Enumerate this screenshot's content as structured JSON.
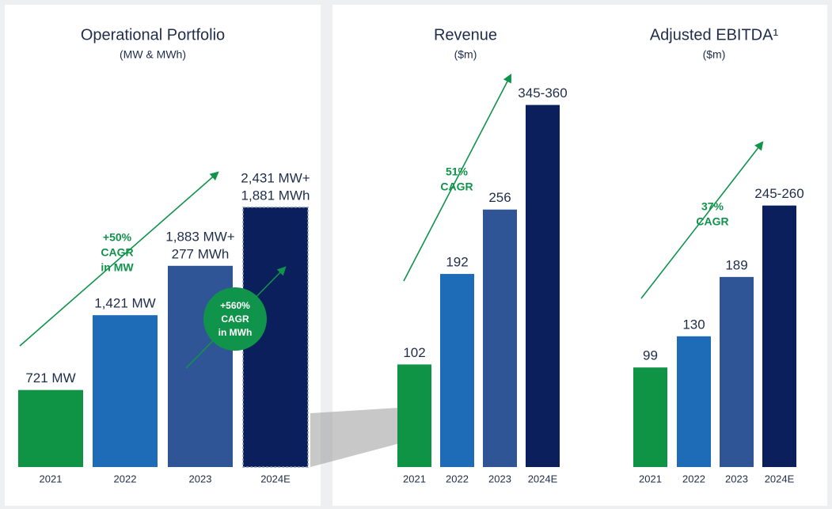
{
  "chart_data": [
    {
      "type": "bar",
      "title": "Operational Portfolio",
      "subtitle": "(MW & MWh)",
      "categories": [
        "2021",
        "2022",
        "2023",
        "2024E"
      ],
      "values": [
        721,
        1421,
        1883,
        2431
      ],
      "value_labels": [
        [
          "721 MW"
        ],
        [
          "1,421 MW"
        ],
        [
          "1,883 MW+",
          "277 MWh"
        ],
        [
          "2,431 MW+",
          "1,881 MWh"
        ]
      ],
      "colors": [
        "#0e9444",
        "#1e6bb8",
        "#2f5597",
        "#0b1f5c"
      ],
      "ylim": [
        0,
        4000
      ],
      "annotations": [
        {
          "lines": [
            "+50%",
            "CAGR",
            "in MW"
          ]
        },
        {
          "lines": [
            "+560%",
            "CAGR",
            "in MWh"
          ]
        }
      ]
    },
    {
      "type": "bar",
      "title": "Revenue",
      "subtitle": "($m)",
      "categories": [
        "2021",
        "2022",
        "2023",
        "2024E"
      ],
      "values": [
        102,
        192,
        256,
        360
      ],
      "value_labels": [
        [
          "102"
        ],
        [
          "192"
        ],
        [
          "256"
        ],
        [
          "345-360"
        ]
      ],
      "colors": [
        "#0e9444",
        "#1e6bb8",
        "#2f5597",
        "#0b1f5c"
      ],
      "ylim": [
        0,
        425
      ],
      "annotations": [
        {
          "lines": [
            "51%",
            "CAGR"
          ]
        }
      ]
    },
    {
      "type": "bar",
      "title": "Adjusted EBITDA¹",
      "subtitle": "($m)",
      "categories": [
        "2021",
        "2022",
        "2023",
        "2024E"
      ],
      "values": [
        99,
        130,
        189,
        260
      ],
      "value_labels": [
        [
          "99"
        ],
        [
          "130"
        ],
        [
          "189"
        ],
        [
          "245-260"
        ]
      ],
      "colors": [
        "#0e9444",
        "#1e6bb8",
        "#2f5597",
        "#0b1f5c"
      ],
      "ylim": [
        0,
        425
      ],
      "annotations": [
        {
          "lines": [
            "37%",
            "CAGR"
          ]
        }
      ]
    }
  ]
}
